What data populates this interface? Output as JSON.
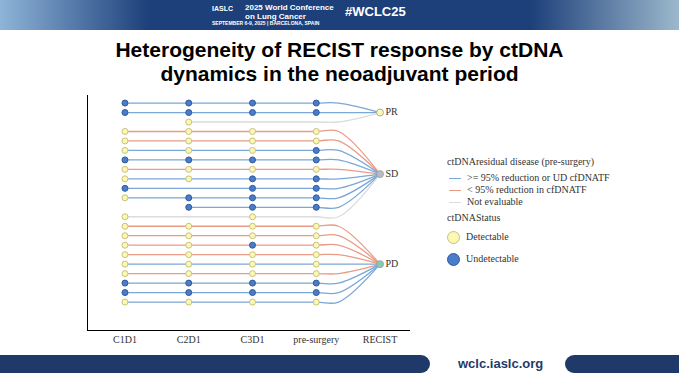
{
  "slide": {
    "header": {
      "org": "IASLC",
      "conference": "2025 World Conference on Lung Cancer",
      "dates": "SEPTEMBER 6-9, 2025 | BARCELONA, SPAIN",
      "hashtag": "#WCLC25"
    },
    "title": [
      "Heterogeneity of RECIST response by ctDNA",
      "dynamics in the neoadjuvant period"
    ],
    "footer": "wclc.iaslc.org"
  },
  "chart_data": {
    "type": "swimmer",
    "categories": [
      "C1D1",
      "C2D1",
      "C3D1",
      "pre-surgery",
      "RECIST"
    ],
    "tick_labels": "x",
    "residual_legend_title": "ctDNAresidual disease (pre-surgery)",
    "residual_groups": [
      {
        "name": ">= 95% reduction or UD cfDNATF",
        "color": "#7ba7d6"
      },
      {
        "name": "< 95% reduction in cfDNATF",
        "color": "#e89c86"
      },
      {
        "name": "Not evaluable",
        "color": "#dcdcdc"
      }
    ],
    "status_legend_title": "ctDNAStatus",
    "statuses": [
      {
        "name": "Detectable",
        "color": "#fbf7b5",
        "line_color": "#c9c27a"
      },
      {
        "name": "Undetectable",
        "color": "#4a7cc9",
        "line_color": "#2f5a9c"
      }
    ],
    "recist_categories": [
      {
        "name": "PR",
        "color": "#fbf7b5"
      },
      {
        "name": "SD",
        "color": "#b8bcc4"
      },
      {
        "name": "PD",
        "color": "#7fcdb8"
      }
    ],
    "patients": [
      {
        "timepoints": [
          "Undetectable",
          "Undetectable",
          "Undetectable",
          "Undetectable"
        ],
        "residual": ">= 95% reduction or UD cfDNATF",
        "recist": "PR"
      },
      {
        "timepoints": [
          "Undetectable",
          "Undetectable",
          "Undetectable",
          "Undetectable"
        ],
        "residual": ">= 95% reduction or UD cfDNATF",
        "recist": "PR"
      },
      {
        "timepoints": [
          null,
          "Detectable",
          null,
          null
        ],
        "residual": "Not evaluable",
        "recist": "PR"
      },
      {
        "timepoints": [
          "Detectable",
          "Detectable",
          "Detectable",
          "Detectable"
        ],
        "residual": "< 95% reduction in cfDNATF",
        "recist": "SD"
      },
      {
        "timepoints": [
          "Detectable",
          "Detectable",
          "Detectable",
          "Detectable"
        ],
        "residual": "< 95% reduction in cfDNATF",
        "recist": "SD"
      },
      {
        "timepoints": [
          "Detectable",
          "Detectable",
          "Detectable",
          "Undetectable"
        ],
        "residual": ">= 95% reduction or UD cfDNATF",
        "recist": "SD"
      },
      {
        "timepoints": [
          "Undetectable",
          "Undetectable",
          "Undetectable",
          "Undetectable"
        ],
        "residual": ">= 95% reduction or UD cfDNATF",
        "recist": "SD"
      },
      {
        "timepoints": [
          "Detectable",
          "Detectable",
          "Detectable",
          "Detectable"
        ],
        "residual": "< 95% reduction in cfDNATF",
        "recist": "SD"
      },
      {
        "timepoints": [
          "Detectable",
          "Detectable",
          "Undetectable",
          "Undetectable"
        ],
        "residual": ">= 95% reduction or UD cfDNATF",
        "recist": "SD"
      },
      {
        "timepoints": [
          "Undetectable",
          null,
          "Undetectable",
          "Undetectable"
        ],
        "residual": ">= 95% reduction or UD cfDNATF",
        "recist": "SD"
      },
      {
        "timepoints": [
          "Detectable",
          "Undetectable",
          "Undetectable",
          "Undetectable"
        ],
        "residual": ">= 95% reduction or UD cfDNATF",
        "recist": "SD"
      },
      {
        "timepoints": [
          null,
          "Undetectable",
          "Undetectable",
          "Undetectable"
        ],
        "residual": ">= 95% reduction or UD cfDNATF",
        "recist": "SD"
      },
      {
        "timepoints": [
          "Detectable",
          null,
          "Detectable",
          null
        ],
        "residual": "Not evaluable",
        "recist": "SD"
      },
      {
        "timepoints": [
          "Detectable",
          "Detectable",
          "Detectable",
          "Detectable"
        ],
        "residual": "< 95% reduction in cfDNATF",
        "recist": "PD"
      },
      {
        "timepoints": [
          "Detectable",
          "Detectable",
          "Detectable",
          "Detectable"
        ],
        "residual": "< 95% reduction in cfDNATF",
        "recist": "PD"
      },
      {
        "timepoints": [
          "Detectable",
          "Detectable",
          "Undetectable",
          "Detectable"
        ],
        "residual": "< 95% reduction in cfDNATF",
        "recist": "PD"
      },
      {
        "timepoints": [
          "Detectable",
          "Detectable",
          "Detectable",
          "Detectable"
        ],
        "residual": "< 95% reduction in cfDNATF",
        "recist": "PD"
      },
      {
        "timepoints": [
          "Detectable",
          "Detectable",
          "Detectable",
          "Detectable"
        ],
        "residual": ">= 95% reduction or UD cfDNATF",
        "recist": "PD"
      },
      {
        "timepoints": [
          "Detectable",
          "Detectable",
          "Detectable",
          "Detectable"
        ],
        "residual": "< 95% reduction in cfDNATF",
        "recist": "PD"
      },
      {
        "timepoints": [
          "Undetectable",
          "Undetectable",
          "Undetectable",
          "Undetectable"
        ],
        "residual": ">= 95% reduction or UD cfDNATF",
        "recist": "PD"
      },
      {
        "timepoints": [
          "Undetectable",
          "Undetectable",
          "Undetectable",
          "Undetectable"
        ],
        "residual": ">= 95% reduction or UD cfDNATF",
        "recist": "PD"
      },
      {
        "timepoints": [
          "Detectable",
          "Detectable",
          "Detectable",
          "Detectable"
        ],
        "residual": ">= 95% reduction or UD cfDNATF",
        "recist": "PD"
      }
    ]
  }
}
